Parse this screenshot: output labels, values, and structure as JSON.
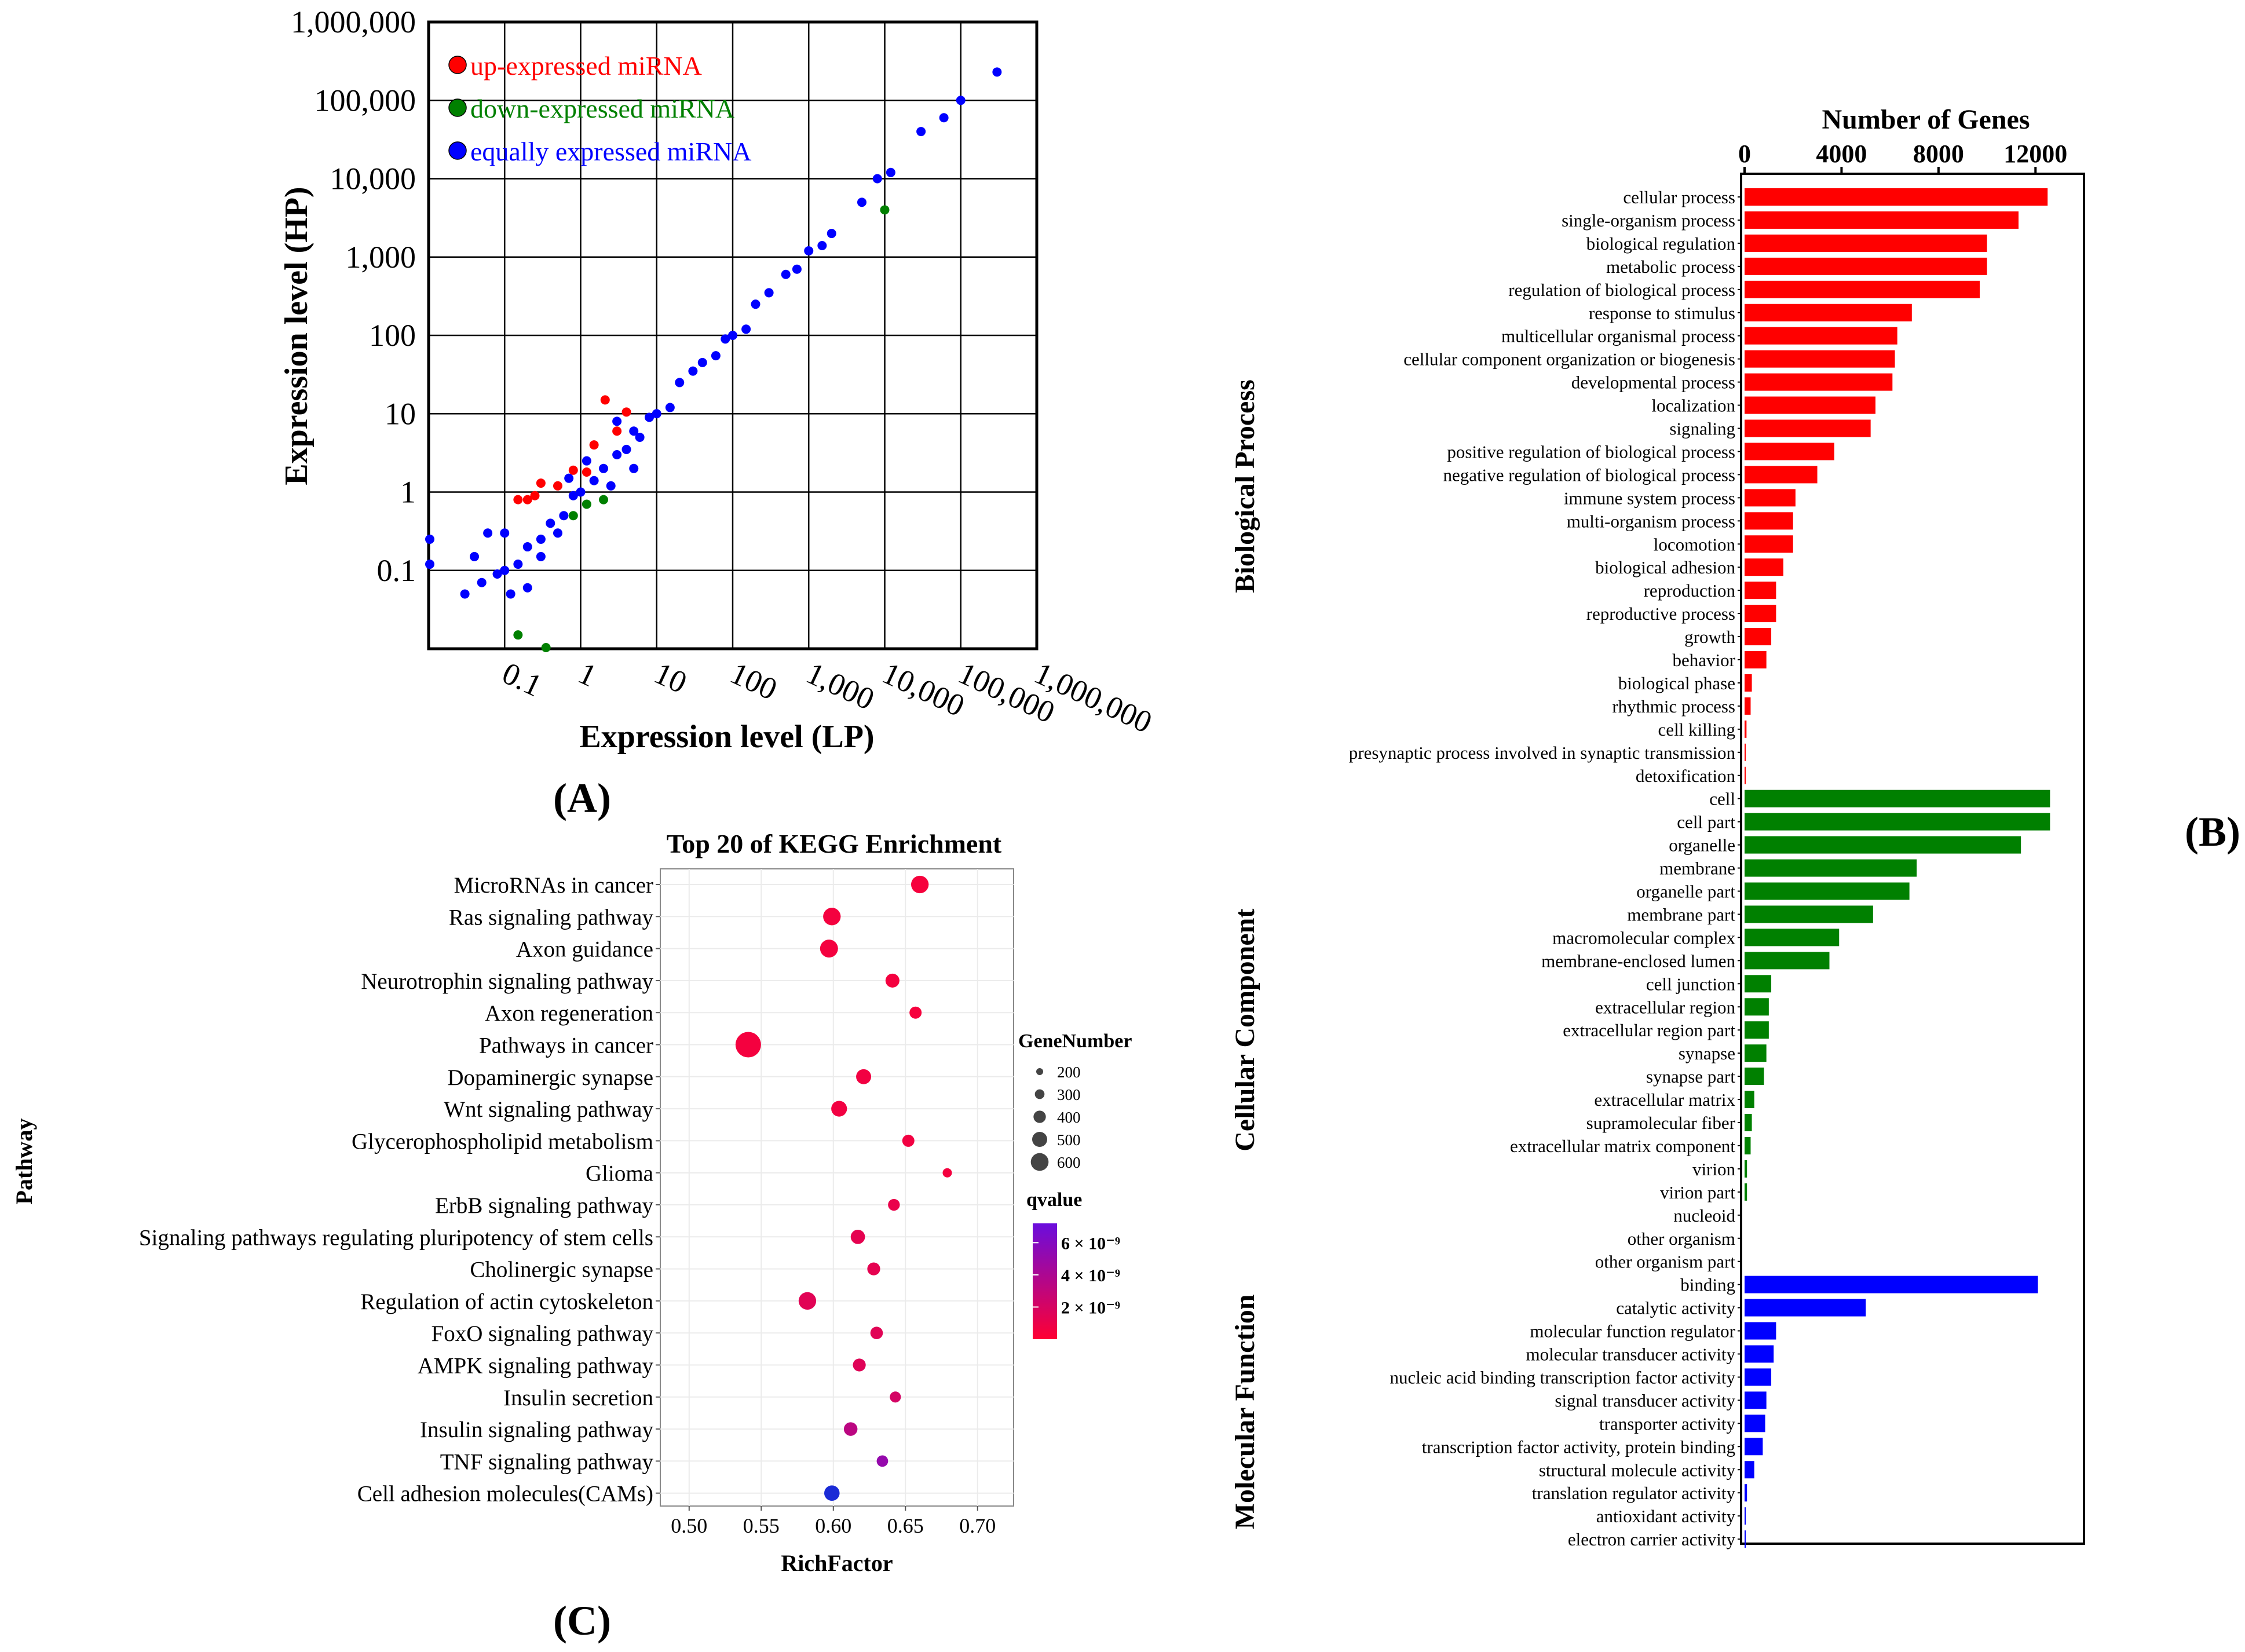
{
  "panel_labels": {
    "a": "(A)",
    "b": "(B)",
    "c": "(C)"
  },
  "chart_data": [
    {
      "id": "A",
      "type": "scatter",
      "title": "",
      "xlabel": "Expression level (LP)",
      "ylabel": "Expression level (HP)",
      "scale": "log10",
      "xlim": [
        0.01,
        1000000
      ],
      "ylim": [
        0.01,
        1000000
      ],
      "x_ticks": [
        {
          "v": 0.1,
          "label": "0.1"
        },
        {
          "v": 1,
          "label": "1"
        },
        {
          "v": 10,
          "label": "10"
        },
        {
          "v": 100,
          "label": "100"
        },
        {
          "v": 1000,
          "label": "1,000"
        },
        {
          "v": 10000,
          "label": "10,000"
        },
        {
          "v": 100000,
          "label": "100,000"
        },
        {
          "v": 1000000,
          "label": "1,000,000"
        }
      ],
      "y_ticks": [
        {
          "v": 0.1,
          "label": "0.1"
        },
        {
          "v": 1,
          "label": "1"
        },
        {
          "v": 10,
          "label": "10"
        },
        {
          "v": 100,
          "label": "100"
        },
        {
          "v": 1000,
          "label": "1,000"
        },
        {
          "v": 10000,
          "label": "10,000"
        },
        {
          "v": 100000,
          "label": "100,000"
        },
        {
          "v": 1000000,
          "label": "1,000,000"
        }
      ],
      "grid": true,
      "legend_position": "top-left",
      "series": [
        {
          "name": "up-expressed miRNA",
          "color": "#ff0000",
          "points": [
            [
              0.15,
              0.8
            ],
            [
              0.2,
              0.8
            ],
            [
              0.3,
              1.3
            ],
            [
              0.5,
              1.2
            ],
            [
              0.8,
              1.9
            ],
            [
              1.2,
              1.8
            ],
            [
              2.1,
              15
            ],
            [
              4,
              10.5
            ],
            [
              1.5,
              4
            ],
            [
              3,
              6
            ],
            [
              0.25,
              0.9
            ]
          ]
        },
        {
          "name": "down-expressed miRNA",
          "color": "#008000",
          "points": [
            [
              10000,
              4000
            ],
            [
              1.2,
              0.7
            ],
            [
              2,
              0.8
            ],
            [
              0.8,
              0.5
            ],
            [
              0.35,
              0.01
            ],
            [
              0.15,
              0.015
            ]
          ]
        },
        {
          "name": "equally expressed miRNA",
          "color": "#0000ff",
          "points": [
            [
              300000,
              230000
            ],
            [
              100000,
              100000
            ],
            [
              60000,
              60000
            ],
            [
              30000,
              40000
            ],
            [
              12000,
              12000
            ],
            [
              8000,
              10000
            ],
            [
              5000,
              5000
            ],
            [
              2000,
              2000
            ],
            [
              1500,
              1400
            ],
            [
              1000,
              1200
            ],
            [
              700,
              700
            ],
            [
              500,
              600
            ],
            [
              300,
              350
            ],
            [
              200,
              250
            ],
            [
              150,
              120
            ],
            [
              100,
              100
            ],
            [
              80,
              90
            ],
            [
              60,
              55
            ],
            [
              40,
              45
            ],
            [
              30,
              35
            ],
            [
              20,
              25
            ],
            [
              15,
              12
            ],
            [
              10,
              10
            ],
            [
              8,
              9
            ],
            [
              6,
              5
            ],
            [
              5,
              6
            ],
            [
              4,
              3.5
            ],
            [
              3,
              3
            ],
            [
              2,
              2
            ],
            [
              1.5,
              1.4
            ],
            [
              1,
              1
            ],
            [
              0.8,
              0.9
            ],
            [
              0.6,
              0.5
            ],
            [
              0.4,
              0.4
            ],
            [
              0.3,
              0.25
            ],
            [
              0.2,
              0.2
            ],
            [
              0.15,
              0.12
            ],
            [
              0.1,
              0.1
            ],
            [
              0.08,
              0.09
            ],
            [
              0.05,
              0.07
            ],
            [
              0.03,
              0.05
            ],
            [
              0.04,
              0.15
            ],
            [
              0.06,
              0.3
            ],
            [
              0.12,
              0.05
            ],
            [
              0.2,
              0.06
            ],
            [
              0.1,
              0.3
            ],
            [
              0.3,
              0.15
            ],
            [
              0.5,
              0.3
            ],
            [
              0.7,
              1.5
            ],
            [
              2.5,
              1.2
            ],
            [
              1.2,
              2.5
            ],
            [
              5,
              2
            ],
            [
              3,
              8
            ],
            [
              0.01,
              0.12
            ],
            [
              0.01,
              0.25
            ]
          ]
        }
      ]
    },
    {
      "id": "B",
      "type": "bar",
      "orientation": "horizontal",
      "title": "Number of Genes",
      "xlim": [
        0,
        14000
      ],
      "x_ticks": [
        0,
        4000,
        8000,
        12000
      ],
      "groups": [
        {
          "name": "Biological Process",
          "color": "#ff0000",
          "categories": [
            "cellular process",
            "single-organism process",
            "biological regulation",
            "metabolic process",
            "regulation of biological process",
            "response to stimulus",
            "multicellular organismal process",
            "cellular component organization or biogenesis",
            "developmental process",
            "localization",
            "signaling",
            "positive regulation of biological process",
            "negative regulation of biological process",
            "immune system process",
            "multi-organism process",
            "locomotion",
            "biological adhesion",
            "reproduction",
            "reproductive process",
            "growth",
            "behavior",
            "biological phase",
            "rhythmic process",
            "cell killing",
            "presynaptic process involved in synaptic transmission",
            "detoxification"
          ],
          "values": [
            12500,
            11300,
            10000,
            10000,
            9700,
            6900,
            6300,
            6200,
            6100,
            5400,
            5200,
            3700,
            3000,
            2100,
            2000,
            2000,
            1600,
            1300,
            1300,
            1100,
            900,
            300,
            250,
            80,
            50,
            30
          ]
        },
        {
          "name": "Cellular Component",
          "color": "#008000",
          "categories": [
            "cell",
            "cell part",
            "organelle",
            "membrane",
            "organelle part",
            "membrane part",
            "macromolecular complex",
            "membrane-enclosed lumen",
            "cell junction",
            "extracellular region",
            "extracellular region part",
            "synapse",
            "synapse part",
            "extracellular matrix",
            "supramolecular fiber",
            "extracellular matrix component",
            "virion",
            "virion part",
            "nucleoid",
            "other organism",
            "other organism part"
          ],
          "values": [
            12600,
            12600,
            11400,
            7100,
            6800,
            5300,
            3900,
            3500,
            1100,
            1000,
            1000,
            900,
            800,
            400,
            300,
            250,
            100,
            100,
            0,
            0,
            0
          ]
        },
        {
          "name": "Molecular Function",
          "color": "#0000ff",
          "categories": [
            "binding",
            "catalytic activity",
            "molecular function regulator",
            "molecular transducer activity",
            "nucleic acid binding transcription factor activity",
            "signal transducer activity",
            "transporter activity",
            "transcription factor activity, protein binding",
            "structural molecule activity",
            "translation regulator activity",
            "antioxidant activity",
            "electron carrier activity"
          ],
          "values": [
            12100,
            5000,
            1300,
            1200,
            1100,
            900,
            850,
            750,
            400,
            100,
            50,
            20
          ]
        }
      ]
    },
    {
      "id": "C",
      "type": "scatter",
      "title": "Top 20 of KEGG Enrichment",
      "xlabel": "RichFactor",
      "ylabel": "Pathway",
      "xlim": [
        0.48,
        0.725
      ],
      "x_ticks": [
        0.5,
        0.55,
        0.6,
        0.65,
        0.7
      ],
      "x_tick_labels": [
        "0.50",
        "0.55",
        "0.60",
        "0.65",
        "0.70"
      ],
      "grid": true,
      "size_legend": {
        "title": "GeneNumber",
        "values": [
          200,
          300,
          400,
          500,
          600
        ],
        "labels": [
          "200",
          "300",
          "400",
          "500",
          "600"
        ]
      },
      "color_legend": {
        "title": "qvalue",
        "low_color": "#ff0033",
        "high_color": "#6a0ddd",
        "ticks": [
          {
            "v": 6,
            "label": "6 × 10⁻⁹"
          },
          {
            "v": 4,
            "label": "4 × 10⁻⁹"
          },
          {
            "v": 2,
            "label": "2 × 10⁻⁹"
          }
        ]
      },
      "pathways": [
        {
          "name": "MicroRNAs in cancer",
          "rich": 0.66,
          "genes": 430,
          "q": 0.4
        },
        {
          "name": "Ras signaling pathway",
          "rich": 0.599,
          "genes": 430,
          "q": 0.5
        },
        {
          "name": "Axon guidance",
          "rich": 0.597,
          "genes": 440,
          "q": 0.5
        },
        {
          "name": "Neurotrophin signaling pathway",
          "rich": 0.641,
          "genes": 330,
          "q": 0.5
        },
        {
          "name": "Axon regeneration",
          "rich": 0.657,
          "genes": 280,
          "q": 0.4
        },
        {
          "name": "Pathways in cancer",
          "rich": 0.541,
          "genes": 650,
          "q": 0.5
        },
        {
          "name": "Dopaminergic synapse",
          "rich": 0.621,
          "genes": 360,
          "q": 0.6
        },
        {
          "name": "Wnt signaling pathway",
          "rich": 0.604,
          "genes": 380,
          "q": 0.6
        },
        {
          "name": "Glycerophospholipid metabolism",
          "rich": 0.652,
          "genes": 280,
          "q": 0.6
        },
        {
          "name": "Glioma",
          "rich": 0.679,
          "genes": 200,
          "q": 0.5
        },
        {
          "name": "ErbB signaling pathway",
          "rich": 0.642,
          "genes": 270,
          "q": 1.0
        },
        {
          "name": "Signaling pathways regulating pluripotency of stem cells",
          "rich": 0.617,
          "genes": 340,
          "q": 1.2
        },
        {
          "name": "Cholinergic synapse",
          "rich": 0.628,
          "genes": 300,
          "q": 1.2
        },
        {
          "name": "Regulation of actin cytoskeleton",
          "rich": 0.582,
          "genes": 430,
          "q": 1.4
        },
        {
          "name": "FoxO signaling pathway",
          "rich": 0.63,
          "genes": 290,
          "q": 1.4
        },
        {
          "name": "AMPK signaling pathway",
          "rich": 0.618,
          "genes": 300,
          "q": 1.5
        },
        {
          "name": "Insulin secretion",
          "rich": 0.643,
          "genes": 250,
          "q": 2.0
        },
        {
          "name": "Insulin signaling pathway",
          "rich": 0.612,
          "genes": 320,
          "q": 3.2
        },
        {
          "name": "TNF signaling pathway",
          "rich": 0.634,
          "genes": 260,
          "q": 5.0
        },
        {
          "name": "Cell adhesion molecules(CAMs)",
          "rich": 0.599,
          "genes": 370,
          "q": 7.0
        }
      ]
    }
  ]
}
